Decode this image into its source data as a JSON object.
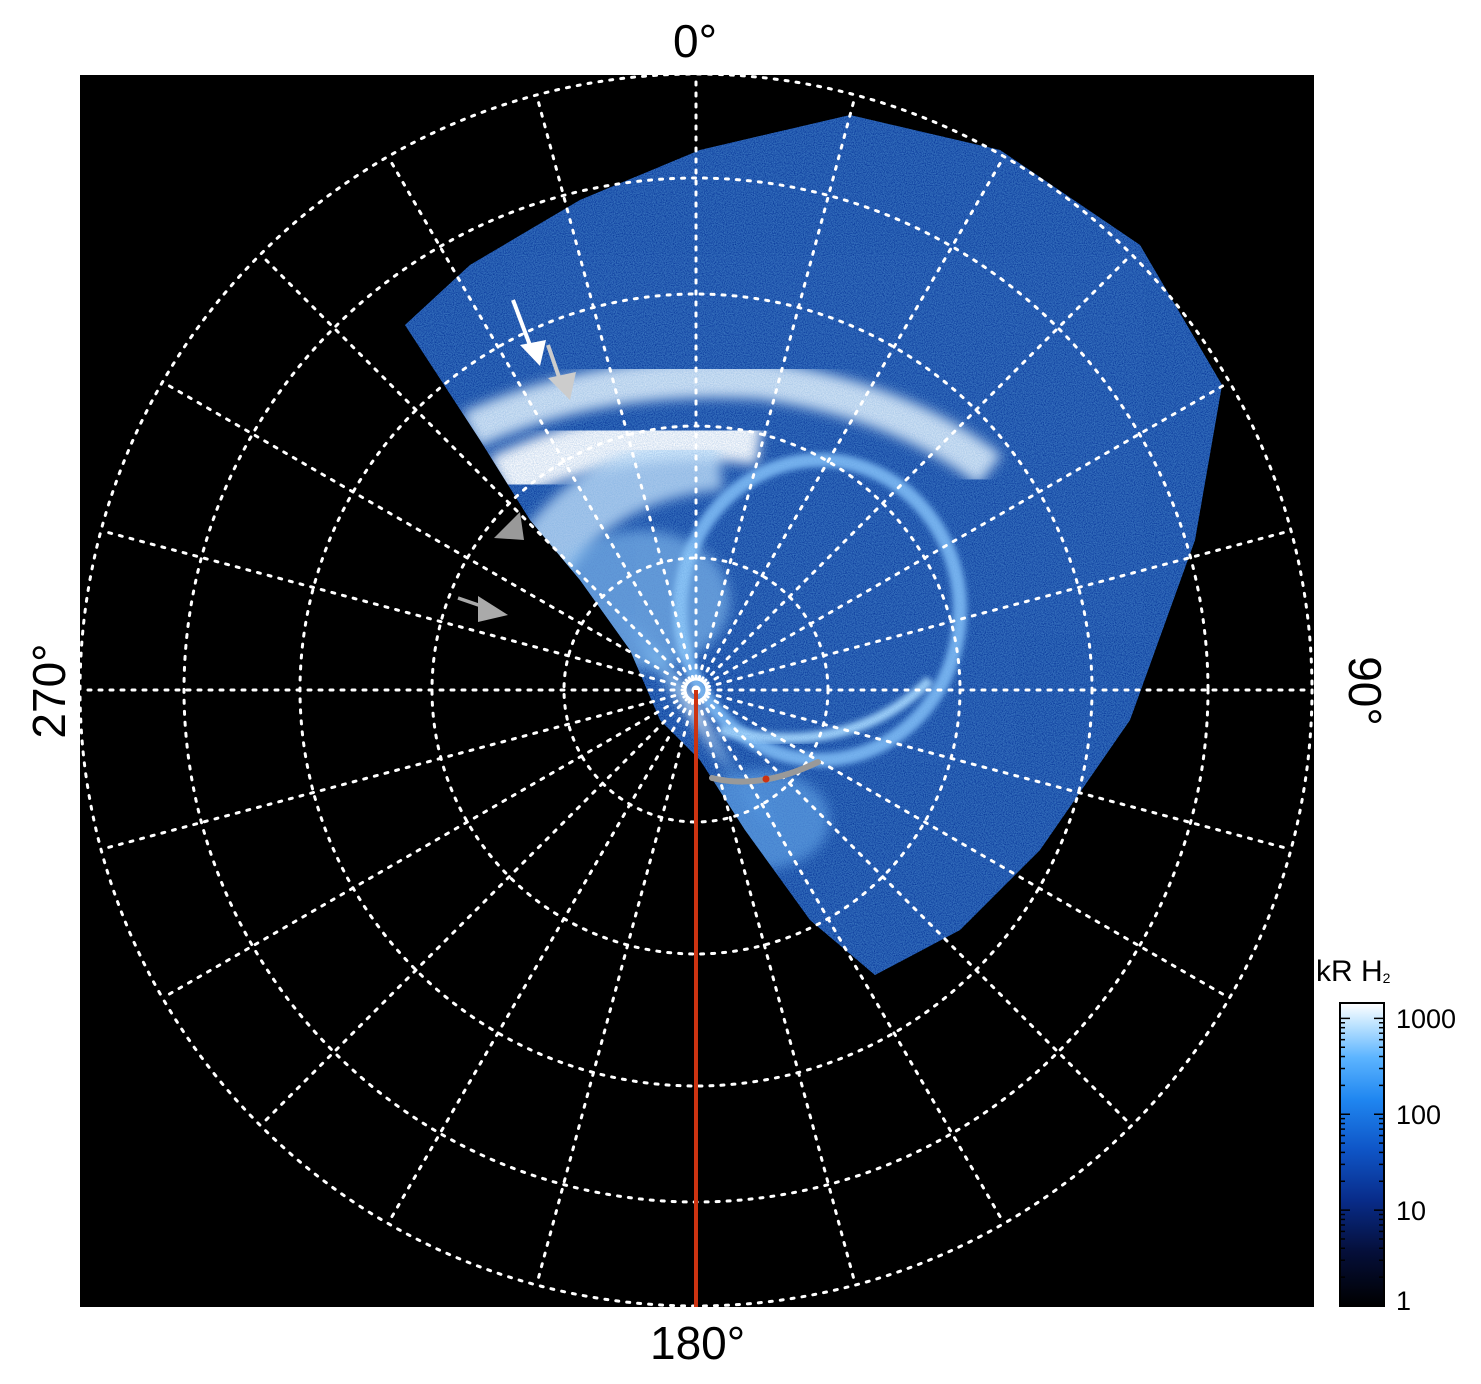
{
  "figure": {
    "angle_labels": {
      "top": "0°",
      "right": "90°",
      "bottom": "180°",
      "left": "270°"
    },
    "colorbar": {
      "title": "kR H",
      "title_subscript": "2",
      "ticks": [
        "1000",
        "100",
        "10",
        "1"
      ],
      "colors": [
        "#000000",
        "#061a5e",
        "#0b3fa6",
        "#1870de",
        "#3aa0ff",
        "#9ad4ff",
        "#ffffff"
      ]
    },
    "colors": {
      "background": "#000000",
      "grid": "#ffffff",
      "meridian_line": "#cc3311",
      "arc_line": "#999999",
      "arrow_white": "#ffffff",
      "arrow_grey": "#aaaaaa"
    }
  }
}
